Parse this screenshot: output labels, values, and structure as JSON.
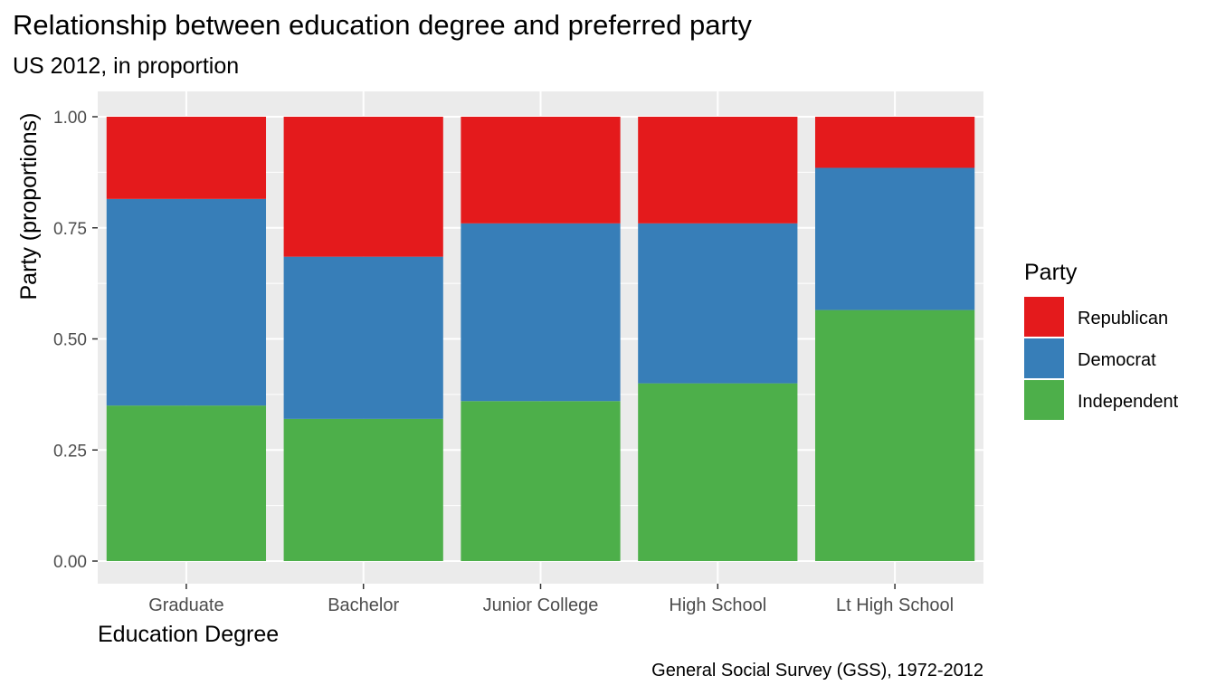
{
  "chart_data": {
    "type": "bar",
    "stacked": true,
    "title": "Relationship between education degree and preferred party",
    "subtitle": "US 2012, in proportion",
    "caption": "General Social Survey (GSS), 1972-2012",
    "xlabel": "Education Degree",
    "ylabel": "Party (proportions)",
    "ylim": [
      0,
      1
    ],
    "yticks": [
      "0.00",
      "0.25",
      "0.50",
      "0.75",
      "1.00"
    ],
    "ytick_values": [
      0,
      0.25,
      0.5,
      0.75,
      1.0
    ],
    "grid": true,
    "categories": [
      "Graduate",
      "Bachelor",
      "Junior College",
      "High School",
      "Lt High School"
    ],
    "legend": {
      "title": "Party",
      "position": "right"
    },
    "series": [
      {
        "name": "Independent",
        "color": "#4DAF4A",
        "values": [
          0.35,
          0.32,
          0.36,
          0.4,
          0.565
        ]
      },
      {
        "name": "Democrat",
        "color": "#377EB8",
        "values": [
          0.465,
          0.365,
          0.4,
          0.36,
          0.32
        ]
      },
      {
        "name": "Republican",
        "color": "#E41A1C",
        "values": [
          0.185,
          0.315,
          0.24,
          0.24,
          0.115
        ]
      }
    ],
    "legend_order": [
      "Republican",
      "Democrat",
      "Independent"
    ]
  }
}
